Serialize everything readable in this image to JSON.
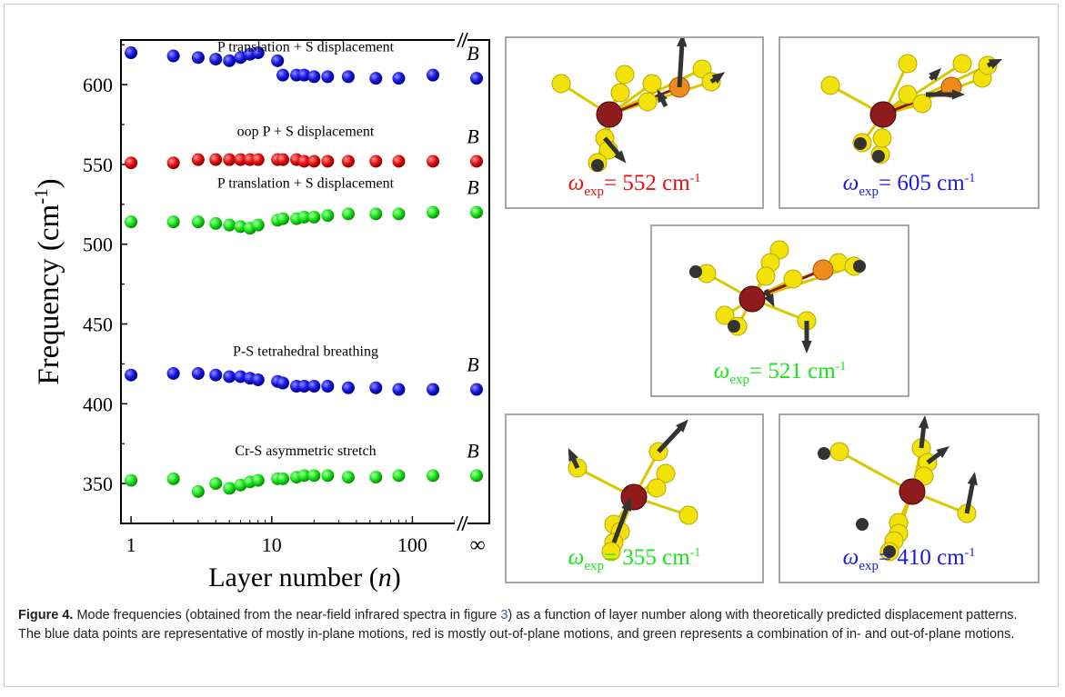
{
  "colors": {
    "blue": "#1a1ae6",
    "red": "#e81010",
    "green": "#17e617"
  },
  "chart_data": {
    "type": "scatter",
    "xlabel_main": "Layer number",
    "xlabel_var": "n",
    "ylabel": "Frequency (cm",
    "ylabel_sup": "-1",
    "ylabel_end": ")",
    "x_scale": "log",
    "xlim": [
      0.9,
      200
    ],
    "ylim": [
      325,
      628
    ],
    "xticks": [
      1,
      10,
      100
    ],
    "xtick_labels": [
      "1",
      "10",
      "100"
    ],
    "yticks": [
      350,
      400,
      450,
      500,
      550,
      600
    ],
    "ytick_labels": [
      "350",
      "400",
      "450",
      "500",
      "550",
      "600"
    ],
    "bulk_label": "∞",
    "series": [
      {
        "color": "blue",
        "label": "P translation + S displacement",
        "bulk_marker": "B",
        "x": [
          1,
          2,
          3,
          4,
          5,
          6,
          7,
          8,
          11,
          12,
          15,
          17,
          20,
          25,
          35,
          55,
          80,
          140
        ],
        "y": [
          620,
          618,
          617,
          616,
          615,
          617,
          619,
          620,
          615,
          606,
          606,
          606,
          605,
          605,
          605,
          604,
          604,
          606
        ],
        "bulk": 604
      },
      {
        "color": "red",
        "label": "oop P + S displacement",
        "bulk_marker": "B",
        "x": [
          1,
          2,
          3,
          4,
          5,
          6,
          7,
          8,
          11,
          12,
          15,
          17,
          20,
          25,
          35,
          55,
          80,
          140
        ],
        "y": [
          551,
          551,
          553,
          553,
          553,
          553,
          553,
          553,
          553,
          553,
          553,
          552,
          552,
          552,
          552,
          552,
          552,
          552
        ],
        "bulk": 552
      },
      {
        "color": "green",
        "label": "P translation + S displacement",
        "bulk_marker": "B",
        "x": [
          1,
          2,
          3,
          4,
          5,
          6,
          7,
          8,
          11,
          12,
          15,
          17,
          20,
          25,
          35,
          55,
          80,
          140
        ],
        "y": [
          514,
          514,
          514,
          513,
          512,
          511,
          510,
          512,
          515,
          516,
          516,
          517,
          517,
          518,
          519,
          519,
          519,
          520
        ],
        "bulk": 520
      },
      {
        "color": "blue",
        "label": "P-S tetrahedral breathing",
        "bulk_marker": "B",
        "x": [
          1,
          2,
          3,
          4,
          5,
          6,
          7,
          8,
          11,
          12,
          15,
          17,
          20,
          25,
          35,
          55,
          80,
          140
        ],
        "y": [
          418,
          419,
          419,
          418,
          417,
          417,
          416,
          415,
          414,
          413,
          411,
          411,
          411,
          411,
          410,
          410,
          409,
          409
        ],
        "bulk": 409
      },
      {
        "color": "green",
        "label": "Cr-S asymmetric stretch",
        "bulk_marker": "B",
        "x": [
          1,
          2,
          3,
          4,
          5,
          6,
          7,
          8,
          11,
          12,
          15,
          17,
          20,
          25,
          35,
          55,
          80,
          140
        ],
        "y": [
          352,
          353,
          345,
          350,
          347,
          349,
          351,
          352,
          353,
          353,
          354,
          355,
          355,
          355,
          354,
          354,
          355,
          355
        ],
        "bulk": 355
      }
    ]
  },
  "panels": [
    {
      "id": "mode-552",
      "omega": "ω",
      "sub": "exp",
      "value": "= 552 cm",
      "unit_sup": "-1",
      "color": "red"
    },
    {
      "id": "mode-605",
      "omega": "ω",
      "sub": "exp",
      "value": "= 605 cm",
      "unit_sup": "-1",
      "color": "blue"
    },
    {
      "id": "mode-521",
      "omega": "ω",
      "sub": "exp",
      "value": "= 521 cm",
      "unit_sup": "-1",
      "color": "green"
    },
    {
      "id": "mode-355",
      "omega": "ω",
      "sub": "exp",
      "value": "= 355 cm",
      "unit_sup": "-1",
      "color": "green"
    },
    {
      "id": "mode-410",
      "omega": "ω",
      "sub": "exp",
      "value": "= 410 cm",
      "unit_sup": "-1",
      "color": "blue"
    }
  ],
  "caption": {
    "label": "Figure 4.",
    "text_before": " Mode frequencies (obtained from the near-field infrared spectra in figure ",
    "ref": "3",
    "text_after": ") as a function of layer number along with theoretically predicted displacement patterns. The blue data points are representative of mostly in-plane motions, red is mostly out-of-plane motions, and green represents a combination of in- and out-of-plane motions."
  }
}
